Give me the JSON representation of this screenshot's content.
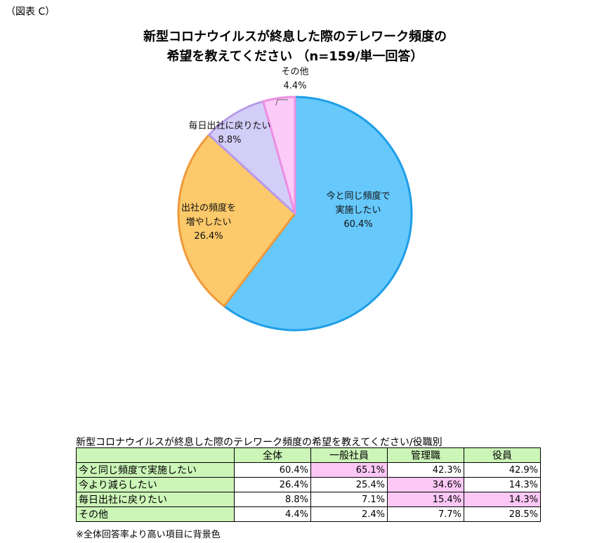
{
  "figure_label": "（図表 C）",
  "chart_data": [
    {
      "type": "pie",
      "title_lines": [
        "新型コロナウイルスが終息した際のテレワーク頻度の",
        "希望を教えてください （n=159/単一回答）"
      ],
      "slices": [
        {
          "label_lines": [
            "今と同じ頻度で",
            "実施したい"
          ],
          "value": 60.4,
          "value_label": "60.4%",
          "color": "#66c8fb",
          "edge": "#1f9ee6"
        },
        {
          "label_lines": [
            "出社の頻度を",
            "増やしたい"
          ],
          "value": 26.4,
          "value_label": "26.4%",
          "color": "#fcc96b",
          "edge": "#ef9a3a"
        },
        {
          "label_lines": [
            "毎日出社に戻りたい"
          ],
          "value": 8.8,
          "value_label": "8.8%",
          "color": "#d3cef8",
          "edge": "#b89ae8"
        },
        {
          "label_lines": [
            "その他"
          ],
          "value": 4.4,
          "value_label": "4.4%",
          "color": "#fccbf7",
          "edge": "#ec8fe4"
        }
      ]
    },
    {
      "type": "table",
      "title": "新型コロナウイルスが終息した際のテレワーク頻度の希望を教えてください/役職別",
      "columns": [
        "全体",
        "一般社員",
        "管理職",
        "役員"
      ],
      "rows": [
        {
          "label": "今と同じ頻度で実施したい",
          "values": [
            "60.4%",
            "65.1%",
            "42.3%",
            "42.9%"
          ],
          "highlight": [
            false,
            true,
            false,
            false
          ]
        },
        {
          "label": "今より減らしたい",
          "values": [
            "26.4%",
            "25.4%",
            "34.6%",
            "14.3%"
          ],
          "highlight": [
            false,
            false,
            true,
            false
          ]
        },
        {
          "label": "毎日出社に戻りたい",
          "values": [
            "8.8%",
            "7.1%",
            "15.4%",
            "14.3%"
          ],
          "highlight": [
            false,
            false,
            true,
            true
          ]
        },
        {
          "label": "その他",
          "values": [
            "4.4%",
            "2.4%",
            "7.7%",
            "28.5%"
          ],
          "highlight": [
            false,
            false,
            false,
            false
          ]
        }
      ],
      "note": "※全体回答率より高い項目に背景色"
    }
  ]
}
